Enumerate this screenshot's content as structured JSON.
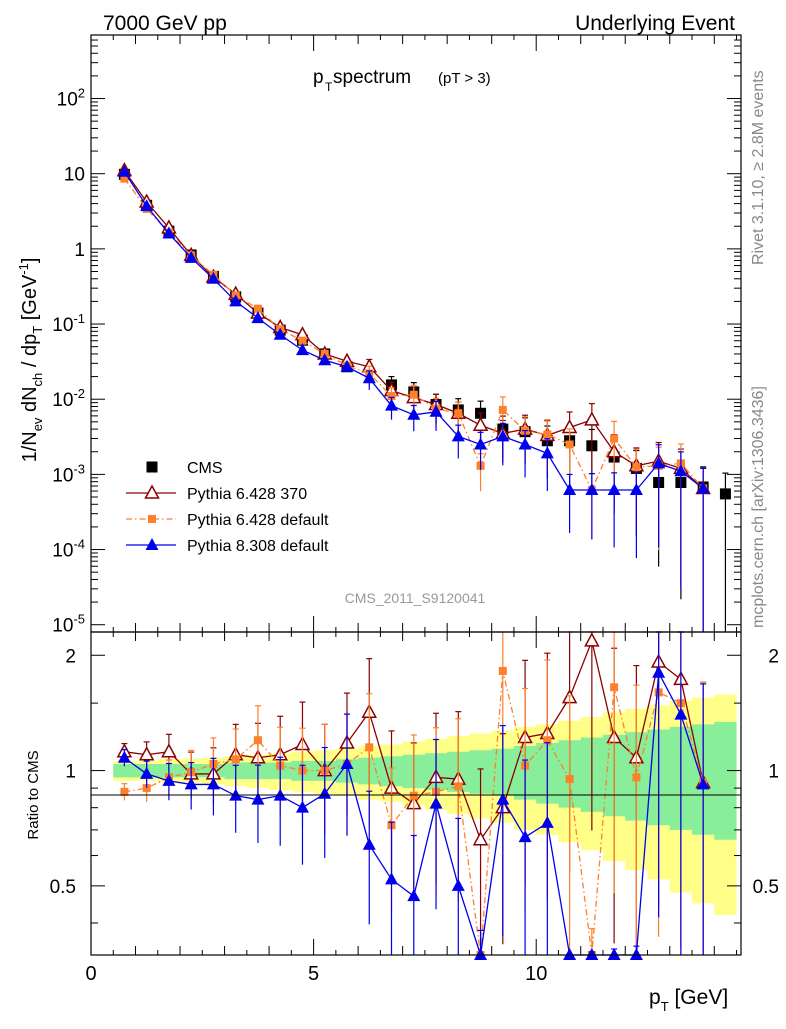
{
  "header": {
    "left": "7000 GeV pp",
    "right": "Underlying Event",
    "plot_title_main": "p",
    "plot_title_sub": "T",
    "plot_title_rest": " spectrum",
    "plot_title_cut": "(pT >  3)"
  },
  "side": {
    "rivet": "Rivet 3.1.10, ≥ 2.8M events",
    "mcplots": "mcplots.cern.ch [arXiv:1306.3436]"
  },
  "watermark": "CMS_2011_S9120041",
  "axes": {
    "ylabel_top": "1/N_ev dN_ch / dp_T [GeV^-1]",
    "ylabel_bottom": "Ratio to CMS",
    "xlabel": "p_T [GeV]",
    "top_ticks": [
      "10^2",
      "10",
      "1",
      "10^-1",
      "10^-2",
      "10^-3",
      "10^-4",
      "10^-5"
    ],
    "bottom_ticks": [
      "2",
      "1",
      "0.5"
    ],
    "x_ticks": [
      "0",
      "5",
      "10"
    ]
  },
  "legend": [
    {
      "label": "CMS",
      "color": "#000000",
      "marker": "square-filled"
    },
    {
      "label": "Pythia 6.428 370",
      "color": "#8b0000",
      "marker": "triangle-open"
    },
    {
      "label": "Pythia 6.428 default",
      "color": "#ff7f2a",
      "marker": "square-filled-small"
    },
    {
      "label": "Pythia 8.308 default",
      "color": "#0000ee",
      "marker": "triangle-filled"
    }
  ],
  "chart_data": {
    "type": "scatter",
    "x": [
      0.75,
      1.25,
      1.75,
      2.25,
      2.75,
      3.25,
      3.75,
      4.25,
      4.75,
      5.25,
      5.75,
      6.25,
      6.75,
      7.25,
      7.75,
      8.25,
      8.75,
      9.25,
      9.75,
      10.25,
      10.75,
      11.25,
      11.75,
      12.25,
      12.75,
      13.25,
      13.75,
      14.25
    ],
    "xlim": [
      0,
      14.6
    ],
    "top_ylim": [
      8e-06,
      700
    ],
    "top_yscale": "log",
    "ratio_ylim": [
      0.33,
      2.3
    ],
    "ratio_yscale": "log",
    "series": [
      {
        "name": "CMS",
        "values": [
          9.8,
          3.8,
          1.72,
          0.83,
          0.43,
          0.23,
          0.14,
          0.083,
          0.061,
          0.04,
          0.027,
          null,
          0.0155,
          0.0125,
          0.0085,
          0.0072,
          0.0065,
          0.004,
          0.0037,
          0.0028,
          0.0028,
          0.0024,
          0.0017,
          0.0012,
          0.00078,
          0.00078,
          0.00068,
          0.00055
        ],
        "band_inner": [
          0.04,
          0.04,
          0.04,
          0.04,
          0.04,
          0.05,
          0.05,
          0.05,
          0.06,
          0.06,
          0.07,
          0.08,
          0.09,
          0.1,
          0.11,
          0.12,
          0.13,
          0.14,
          0.16,
          0.18,
          0.2,
          0.22,
          0.24,
          0.26,
          0.28,
          0.3,
          0.32,
          0.34
        ],
        "band_outer": [
          0.06,
          0.06,
          0.07,
          0.07,
          0.08,
          0.09,
          0.1,
          0.11,
          0.12,
          0.13,
          0.14,
          0.16,
          0.17,
          0.19,
          0.21,
          0.23,
          0.25,
          0.27,
          0.3,
          0.32,
          0.35,
          0.38,
          0.42,
          0.45,
          0.48,
          0.52,
          0.55,
          0.58
        ]
      },
      {
        "name": "Pythia 6.428 370",
        "values": [
          11.0,
          4.2,
          1.9,
          0.82,
          0.42,
          0.25,
          0.14,
          0.09,
          0.072,
          0.04,
          0.032,
          0.027,
          0.013,
          0.0105,
          0.0085,
          0.0065,
          0.0045,
          0.0035,
          0.004,
          0.0033,
          0.0042,
          0.0053,
          0.002,
          0.0013,
          0.0015,
          0.0012,
          0.00065
        ],
        "ratio": [
          1.12,
          1.1,
          1.12,
          0.98,
          0.98,
          1.1,
          1.08,
          1.1,
          1.17,
          1.0,
          1.18,
          1.42,
          0.9,
          0.82,
          0.96,
          0.95,
          0.66,
          0.8,
          1.22,
          1.25,
          1.55,
          2.18,
          1.22,
          1.08,
          1.92,
          1.73,
          0.93
        ]
      },
      {
        "name": "Pythia 6.428 default",
        "values": [
          8.6,
          3.4,
          1.65,
          0.82,
          0.45,
          0.24,
          0.16,
          0.085,
          0.06,
          0.04,
          0.028,
          0.022,
          0.011,
          0.0115,
          0.0075,
          0.0065,
          0.0013,
          0.0072,
          0.0038,
          0.0034,
          0.0025,
          0.00062,
          0.003,
          0.00125,
          0.0013,
          0.0014,
          0.00065
        ],
        "ratio": [
          0.88,
          0.9,
          0.96,
          0.99,
          1.04,
          1.07,
          1.2,
          1.03,
          1.0,
          1.0,
          1.04,
          1.15,
          0.72,
          0.86,
          0.88,
          0.91,
          0.2,
          1.82,
          1.03,
          1.2,
          0.95,
          0.23,
          1.65,
          0.96,
          1.6,
          1.5,
          0.93
        ]
      },
      {
        "name": "Pythia 8.308 default",
        "values": [
          10.6,
          3.7,
          1.6,
          0.76,
          0.4,
          0.2,
          0.12,
          0.072,
          0.045,
          0.033,
          0.027,
          0.019,
          0.0082,
          0.0062,
          0.0068,
          0.0032,
          0.0025,
          0.0032,
          0.0025,
          0.0019,
          0.00062,
          0.00062,
          0.00062,
          0.00062,
          0.0014,
          0.0011,
          0.00065
        ],
        "ratio": [
          1.08,
          0.98,
          0.94,
          0.92,
          0.92,
          0.86,
          0.84,
          0.86,
          0.8,
          0.87,
          1.04,
          0.64,
          0.52,
          0.47,
          0.82,
          0.5,
          0.25,
          0.84,
          0.67,
          0.73,
          0.2,
          0.2,
          0.2,
          0.2,
          1.8,
          1.4,
          0.92
        ]
      }
    ]
  }
}
